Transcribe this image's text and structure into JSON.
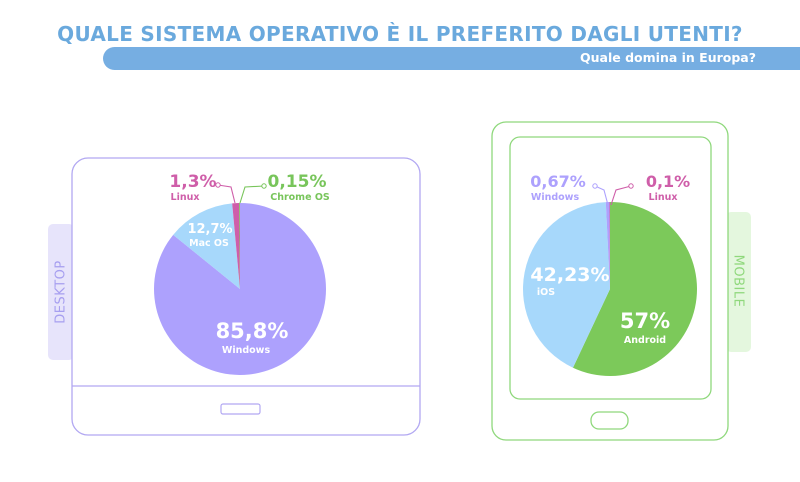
{
  "header": {
    "title": "QUALE SISTEMA OPERATIVO È IL PREFERITO DAGLI UTENTI?",
    "subtitle": "Quale domina in Europa?"
  },
  "devices": {
    "desktop_label": "DESKTOP",
    "mobile_label": "MOBILE"
  },
  "colors": {
    "title": "#6aa9dd",
    "subtitle_bar": "#76aee2",
    "desktop_frame": "#b2a8f2",
    "desktop_tab": "#e7e4fb",
    "mobile_frame": "#8fd87c",
    "mobile_tab": "#e4f7de",
    "windows": "#ada1fd",
    "macos": "#a7d8fb",
    "linux": "#cf5ea9",
    "chromeos": "#78c55b",
    "android": "#7cc95a",
    "ios": "#a7d8fb"
  },
  "chart_data": [
    {
      "type": "pie",
      "title": "DESKTOP",
      "slices": [
        {
          "label": "Windows",
          "value": 85.8,
          "display": "85,8%",
          "color": "#ada1fd"
        },
        {
          "label": "Mac OS",
          "value": 12.7,
          "display": "12,7%",
          "color": "#a7d8fb"
        },
        {
          "label": "Linux",
          "value": 1.3,
          "display": "1,3%",
          "color": "#cf5ea9"
        },
        {
          "label": "Chrome OS",
          "value": 0.15,
          "display": "0,15%",
          "color": "#78c55b"
        }
      ]
    },
    {
      "type": "pie",
      "title": "MOBILE",
      "slices": [
        {
          "label": "Android",
          "value": 57,
          "display": "57%",
          "color": "#7cc95a"
        },
        {
          "label": "iOS",
          "value": 42.23,
          "display": "42,23%",
          "color": "#a7d8fb"
        },
        {
          "label": "Windows",
          "value": 0.67,
          "display": "0,67%",
          "color": "#ada1fd"
        },
        {
          "label": "Linux",
          "value": 0.1,
          "display": "0,1%",
          "color": "#cf5ea9"
        }
      ]
    }
  ]
}
